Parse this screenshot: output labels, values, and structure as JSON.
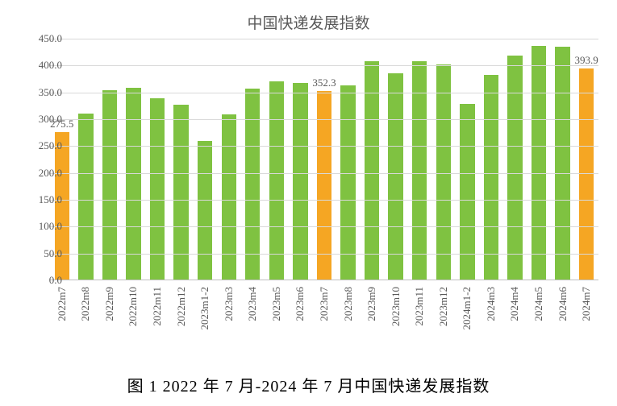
{
  "chart": {
    "type": "bar",
    "title": "中国快递发展指数",
    "title_fontsize": 19,
    "title_color": "#595959",
    "background_color": "#ffffff",
    "grid_color": "#d9d9d9",
    "axis_color": "#bfbfbf",
    "tick_color": "#595959",
    "tick_fontsize": 13,
    "ylim": [
      0,
      450
    ],
    "ytick_step": 50,
    "yticks": [
      "0.0",
      "50.0",
      "100.0",
      "150.0",
      "200.0",
      "250.0",
      "300.0",
      "350.0",
      "400.0",
      "450.0"
    ],
    "bar_width": 0.62,
    "colors": {
      "normal": "#7fc241",
      "highlight": "#f5a623"
    },
    "categories": [
      "2022m7",
      "2022m8",
      "2022m9",
      "2022m10",
      "2022m11",
      "2022m12",
      "2023m1-2",
      "2023m3",
      "2023m4",
      "2023m5",
      "2023m6",
      "2023m7",
      "2023m8",
      "2023m9",
      "2023m10",
      "2023m11",
      "2023m12",
      "2024m1-2",
      "2024m3",
      "2024m4",
      "2024m5",
      "2024m6",
      "2024m7"
    ],
    "values": [
      275.5,
      310,
      353,
      358,
      338,
      326,
      259,
      308,
      356,
      370,
      367,
      352.3,
      362,
      408,
      385,
      408,
      402,
      328,
      382,
      418,
      436,
      435,
      393.9
    ],
    "bar_colors": [
      "#f5a623",
      "#7fc241",
      "#7fc241",
      "#7fc241",
      "#7fc241",
      "#7fc241",
      "#7fc241",
      "#7fc241",
      "#7fc241",
      "#7fc241",
      "#7fc241",
      "#f5a623",
      "#7fc241",
      "#7fc241",
      "#7fc241",
      "#7fc241",
      "#7fc241",
      "#7fc241",
      "#7fc241",
      "#7fc241",
      "#7fc241",
      "#7fc241",
      "#f5a623"
    ],
    "data_labels": [
      "275.5",
      null,
      null,
      null,
      null,
      null,
      null,
      null,
      null,
      null,
      null,
      "352.3",
      null,
      null,
      null,
      null,
      null,
      null,
      null,
      null,
      null,
      null,
      "393.9"
    ]
  },
  "caption": "图 1 2022 年 7 月-2024 年 7 月中国快递发展指数",
  "caption_fontsize": 20
}
